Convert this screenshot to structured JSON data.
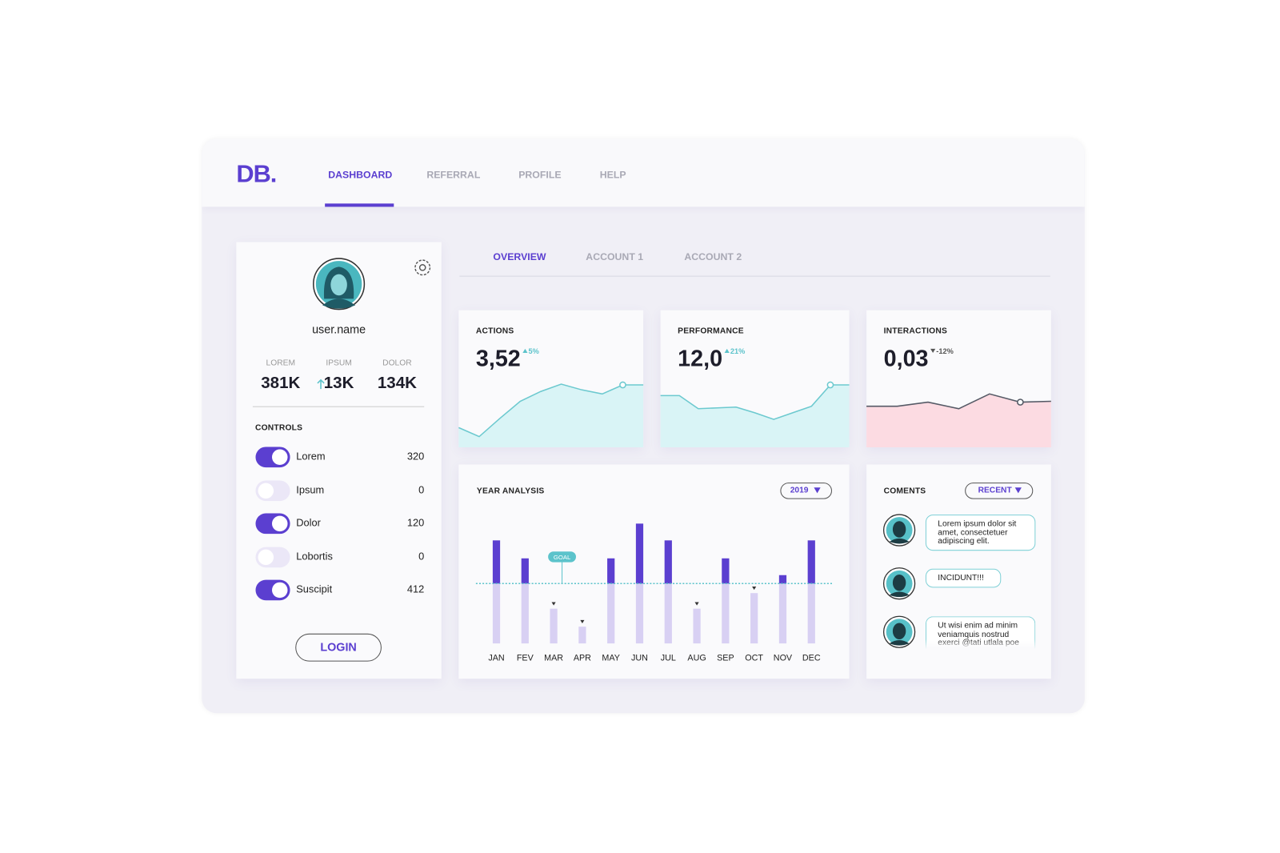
{
  "nav": {
    "logo": "DB.",
    "items": [
      "DASHBOARD",
      "REFERRAL",
      "PROFILE",
      "HELP"
    ],
    "active": 0
  },
  "tabs": {
    "items": [
      "OVERVIEW",
      "ACCOUNT 1",
      "ACCOUNT 2"
    ],
    "active": 0
  },
  "profile": {
    "username": "user.name",
    "stats": [
      {
        "label": "LOREM",
        "value": "381K"
      },
      {
        "label": "IPSUM",
        "value": "13K",
        "trend": "up"
      },
      {
        "label": "DOLOR",
        "value": "134K"
      }
    ],
    "controls_title": "CONTROLS",
    "controls": [
      {
        "label": "Lorem",
        "on": true,
        "value": 320
      },
      {
        "label": "Ipsum",
        "on": false,
        "value": 0
      },
      {
        "label": "Dolor",
        "on": true,
        "value": 120
      },
      {
        "label": "Lobortis",
        "on": false,
        "value": 0
      },
      {
        "label": "Suscipit",
        "on": true,
        "value": 412
      }
    ],
    "login": "LOGIN"
  },
  "kpis": [
    {
      "title": "ACTIONS",
      "value": "3,52",
      "change": "5%",
      "trend": "up",
      "line_color": "#6cc9cf",
      "fill": "#d9f4f6",
      "ylim": [
        0,
        100
      ],
      "sparkline": [
        24,
        13,
        35,
        56,
        68,
        77,
        70,
        65,
        76,
        76
      ],
      "marker": 8
    },
    {
      "title": "PERFORMANCE",
      "value": "12,0",
      "change": "21%",
      "trend": "up",
      "line_color": "#6cc9cf",
      "fill": "#d9f4f6",
      "ylim": [
        0,
        100
      ],
      "sparkline": [
        63,
        63,
        47,
        48,
        49,
        42,
        34,
        42,
        50,
        76,
        76
      ],
      "marker": 9
    },
    {
      "title": "INTERACTIONS",
      "value": "0,03",
      "change": "-12%",
      "trend": "down",
      "line_color": "#555a66",
      "fill": "#fcdbe2",
      "ylim": [
        0,
        100
      ],
      "sparkline": [
        50,
        50,
        55,
        47,
        65,
        55,
        56
      ],
      "marker": 5
    }
  ],
  "chart_data": {
    "type": "bar",
    "title": "YEAR ANALYSIS",
    "filter": "2019",
    "categories": [
      "JAN",
      "FEV",
      "MAR",
      "APR",
      "MAY",
      "JUN",
      "JUL",
      "AUG",
      "SEP",
      "OCT",
      "NOV",
      "DEC"
    ],
    "values": [
      86,
      71,
      29,
      14,
      71,
      100,
      86,
      29,
      71,
      42,
      57,
      86
    ],
    "goal": 50,
    "goal_label": "GOAL",
    "ylim": [
      0,
      100
    ],
    "color": "#5b3fd0",
    "below_color": "#d8d0f3",
    "goal_color": "#5cc3cb"
  },
  "comments": {
    "title": "COMENTS",
    "filter": "RECENT",
    "items": [
      {
        "text": "Lorem ipsum dolor sit amet, consectetuer adipiscing elit."
      },
      {
        "text": "INCIDUNT!!!"
      },
      {
        "text": "Ut wisi enim ad minim veniamquis nostrud exerci @tati utlala poe"
      }
    ]
  }
}
